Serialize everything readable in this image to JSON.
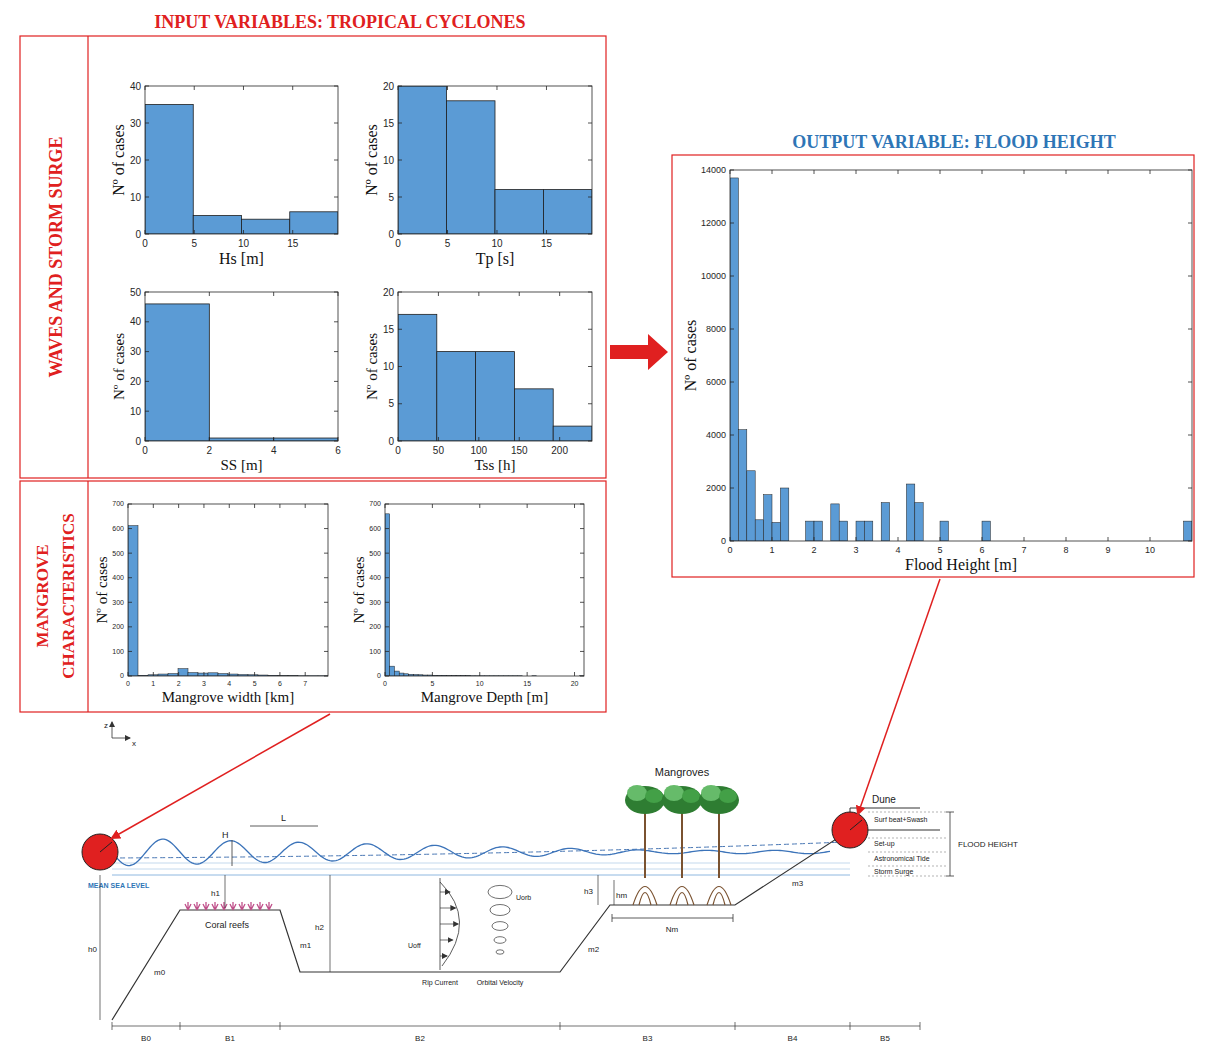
{
  "header": {
    "input_title": "INPUT VARIABLES: TROPICAL CYCLONES",
    "waves_label": "WAVES AND STORM SURGE",
    "mangrove_label": "MANGROVE CHARACTERISTICS",
    "output_title": "OUTPUT VARIABLE: FLOOD HEIGHT"
  },
  "chart_data": [
    {
      "type": "histogram",
      "x_label": "Hs [m]",
      "y_label": "Nº of cases",
      "bins": [
        0,
        4.9,
        9.8,
        14.7,
        19.6
      ],
      "values": [
        35,
        5,
        4,
        6
      ],
      "color": "#5b9bd5",
      "xlim": [
        0,
        19.6
      ],
      "ylim": [
        0,
        40
      ],
      "xticks": [
        0,
        5,
        10,
        15
      ],
      "yticks": [
        0,
        10,
        20,
        30,
        40
      ]
    },
    {
      "type": "histogram",
      "x_label": "Tp [s]",
      "y_label": "Nº of cases",
      "bins": [
        0,
        4.9,
        9.8,
        14.7,
        19.6
      ],
      "values": [
        20,
        18,
        6,
        6
      ],
      "color": "#5b9bd5",
      "xlim": [
        0,
        19.6
      ],
      "ylim": [
        0,
        20
      ],
      "xticks": [
        0,
        5,
        10,
        15
      ],
      "yticks": [
        0,
        5,
        10,
        15,
        20
      ]
    },
    {
      "type": "histogram",
      "x_label": "SS [m]",
      "y_label": "Nº of cases",
      "bins": [
        0,
        2,
        4,
        6
      ],
      "values": [
        46,
        1,
        1
      ],
      "color": "#5b9bd5",
      "xlim": [
        0,
        6
      ],
      "ylim": [
        0,
        50
      ],
      "xticks": [
        0,
        2,
        4,
        6
      ],
      "yticks": [
        0,
        10,
        20,
        30,
        40,
        50
      ]
    },
    {
      "type": "histogram",
      "x_label": "Tss [h]",
      "y_label": "Nº of cases",
      "bins": [
        0,
        48,
        96,
        144,
        192,
        240
      ],
      "values": [
        17,
        12,
        12,
        7,
        2
      ],
      "color": "#5b9bd5",
      "xlim": [
        0,
        240
      ],
      "ylim": [
        0,
        20
      ],
      "xticks": [
        0,
        50,
        100,
        150,
        200
      ],
      "yticks": [
        0,
        5,
        10,
        15,
        20
      ]
    },
    {
      "type": "histogram",
      "x_label": "Mangrove width [km]",
      "y_label": "Nº of cases",
      "bins": [
        0,
        0.395,
        0.79,
        1.185,
        1.58,
        1.975,
        2.37,
        2.765,
        3.16,
        3.555,
        3.95,
        4.345,
        4.74,
        5.135,
        5.53,
        5.925,
        6.32,
        6.715,
        7.11,
        7.505,
        7.9
      ],
      "values": [
        612,
        3,
        5,
        8,
        10,
        30,
        14,
        12,
        13,
        10,
        8,
        6,
        5,
        4,
        3,
        2,
        2,
        1,
        1,
        1
      ],
      "color": "#5b9bd5",
      "xlim": [
        0,
        7.9
      ],
      "ylim": [
        0,
        700
      ],
      "xticks": [
        0,
        1,
        2,
        3,
        4,
        5,
        6,
        7
      ],
      "yticks": [
        0,
        100,
        200,
        300,
        400,
        500,
        600,
        700
      ]
    },
    {
      "type": "histogram",
      "x_label": "Mangrove Depth [m]",
      "y_label": "Nº of cases",
      "bins": [
        0,
        0.5,
        1,
        1.5,
        2,
        2.5,
        3,
        3.5,
        4,
        4.5,
        5,
        5.5,
        6,
        6.5,
        7,
        7.5,
        8,
        8.5,
        9,
        9.5,
        10,
        10.5,
        11,
        11.5,
        12,
        12.5,
        13,
        13.5,
        14,
        14.5,
        15,
        15.5,
        16,
        16.5,
        17,
        17.5,
        18,
        18.5,
        19,
        19.5,
        20,
        20.5,
        21
      ],
      "values": [
        660,
        40,
        20,
        12,
        9,
        7,
        6,
        5,
        4,
        4,
        3,
        3,
        3,
        2,
        2,
        2,
        2,
        2,
        1,
        1,
        1,
        1,
        1,
        1,
        1,
        1,
        1,
        1,
        1,
        0,
        0,
        1,
        0,
        0,
        0,
        0,
        0,
        0,
        0,
        0,
        0,
        1
      ],
      "color": "#5b9bd5",
      "xlim": [
        0,
        21
      ],
      "ylim": [
        0,
        700
      ],
      "xticks": [
        0,
        5,
        10,
        15,
        20
      ],
      "yticks": [
        0,
        100,
        200,
        300,
        400,
        500,
        600,
        700
      ]
    },
    {
      "type": "histogram",
      "x_label": "Flood Height [m]",
      "y_label": "Nº of cases",
      "bins": [
        0,
        0.2,
        0.4,
        0.6,
        0.8,
        1,
        1.2,
        1.4,
        1.6,
        1.8,
        2,
        2.2,
        2.4,
        2.6,
        2.8,
        3,
        3.2,
        3.4,
        3.6,
        3.8,
        4,
        4.2,
        4.4,
        4.6,
        4.8,
        5,
        5.2,
        5.4,
        5.6,
        5.8,
        6,
        6.2,
        6.4,
        6.6,
        6.8,
        7,
        7.2,
        7.4,
        7.6,
        7.8,
        8,
        8.2,
        8.4,
        8.6,
        8.8,
        9,
        9.2,
        9.4,
        9.6,
        9.8,
        10,
        10.2,
        10.4,
        10.6,
        10.8,
        11
      ],
      "values": [
        13700,
        4200,
        2650,
        800,
        1750,
        700,
        2000,
        0,
        0,
        750,
        750,
        0,
        1400,
        750,
        0,
        750,
        750,
        0,
        1450,
        0,
        0,
        2150,
        1450,
        0,
        0,
        750,
        0,
        0,
        0,
        0,
        750,
        0,
        0,
        0,
        0,
        0,
        0,
        0,
        0,
        0,
        0,
        0,
        0,
        0,
        0,
        0,
        0,
        0,
        0,
        0,
        0,
        0,
        0,
        0,
        750
      ],
      "color": "#5b9bd5",
      "xlim": [
        0,
        11
      ],
      "ylim": [
        0,
        14000
      ],
      "xticks": [
        0,
        1,
        2,
        3,
        4,
        5,
        6,
        7,
        8,
        9,
        10
      ],
      "yticks": [
        0,
        2000,
        4000,
        6000,
        8000,
        10000,
        12000,
        14000
      ]
    }
  ],
  "diagram": {
    "mangroves": "Mangroves",
    "dune": "Dune",
    "flood_height": "FLOOD HEIGHT",
    "surf_beat": "Surf beat+Swash",
    "setup": "Set-up",
    "tide": "Astronomical Tide",
    "storm_surge": "Storm Surge",
    "mean_sea_level": "MEAN SEA LEVEL",
    "coral_reefs": "Coral reefs",
    "wave_height": "H",
    "wave_length": "L",
    "rip_current": "Rip Current",
    "orbital_velocity": "Orbital Velocity",
    "u_off": "Uoff",
    "u_orb": "Uorb",
    "depths": [
      "h0",
      "h1",
      "h2",
      "h3",
      "hm"
    ],
    "slopes": [
      "m0",
      "m1",
      "m2",
      "m3"
    ],
    "widths": [
      "B0",
      "B1",
      "B2",
      "B3",
      "B4",
      "B5"
    ],
    "mangrove_width": "Nm",
    "z_axis": "z",
    "x_axis": "x"
  }
}
